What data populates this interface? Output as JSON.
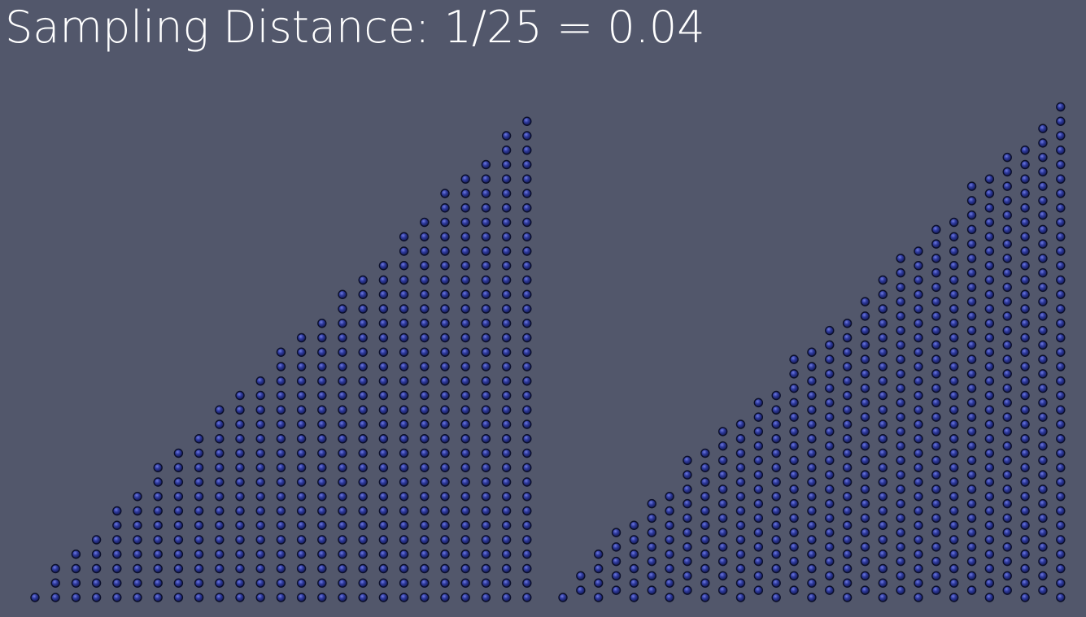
{
  "title": "Sampling Distance: 1/25 = 0.04",
  "colors": {
    "background": "#52576b",
    "point_fill": "#2e3a9c",
    "point_highlight": "#5a66d4",
    "point_outline": "#0b0f2a",
    "text": "#ffffff"
  },
  "triangles": [
    {
      "name": "regular-grid-triangle",
      "rows": 25,
      "row_offset": 0
    },
    {
      "name": "staggered-grid-triangle",
      "rows": 25,
      "row_offset": 1
    }
  ]
}
